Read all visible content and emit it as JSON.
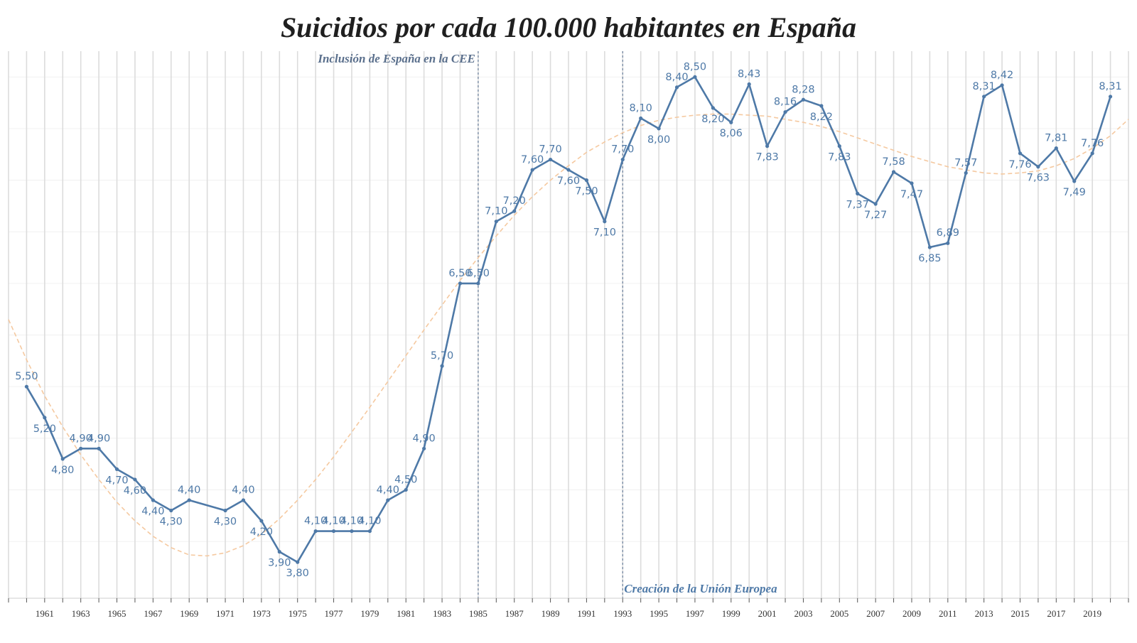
{
  "chart_data": {
    "type": "line",
    "title": "Suicidios por cada 100.000 habitantes en España",
    "xlabel": "",
    "ylabel": "",
    "x": [
      1960,
      1961,
      1962,
      1963,
      1964,
      1965,
      1966,
      1967,
      1968,
      1969,
      1971,
      1972,
      1973,
      1974,
      1975,
      1976,
      1977,
      1978,
      1979,
      1980,
      1981,
      1982,
      1983,
      1984,
      1985,
      1986,
      1987,
      1988,
      1989,
      1990,
      1991,
      1992,
      1993,
      1994,
      1995,
      1996,
      1997,
      1998,
      1999,
      2000,
      2001,
      2002,
      2003,
      2004,
      2005,
      2006,
      2007,
      2008,
      2009,
      2010,
      2011,
      2012,
      2013,
      2014,
      2015,
      2016,
      2017,
      2018,
      2019,
      2020
    ],
    "series": [
      {
        "name": "Suicidios por cada 100.000 habitantes",
        "color": "#4e79a7",
        "values": [
          5.5,
          5.2,
          4.8,
          4.9,
          4.9,
          4.7,
          4.6,
          4.4,
          4.3,
          4.4,
          4.3,
          4.4,
          4.2,
          3.9,
          3.8,
          4.1,
          4.1,
          4.1,
          4.1,
          4.4,
          4.5,
          4.9,
          5.7,
          6.5,
          6.5,
          7.1,
          7.2,
          7.6,
          7.7,
          7.6,
          7.5,
          7.1,
          7.7,
          8.1,
          8.0,
          8.4,
          8.5,
          8.2,
          8.06,
          8.43,
          7.83,
          8.16,
          8.28,
          8.22,
          7.83,
          7.37,
          7.27,
          7.58,
          7.47,
          6.85,
          6.89,
          7.57,
          8.31,
          8.42,
          7.76,
          7.63,
          7.81,
          7.49,
          7.76,
          8.31
        ],
        "labels": [
          "5,50",
          "5,20",
          "4,80",
          "4,90",
          "4,90",
          "4,70",
          "4,60",
          "4,40",
          "4,30",
          "4,40",
          "4,30",
          "4,40",
          "4,20",
          "3,90",
          "3,80",
          "4,10",
          "4,10",
          "4,10",
          "4,10",
          "4,40",
          "4,50",
          "4,90",
          "5,70",
          "6,50",
          "6,50",
          "7,10",
          "7,20",
          "7,60",
          "7,70",
          "7,60",
          "7,50",
          "7,10",
          "7,70",
          "8,10",
          "8,00",
          "8,40",
          "8,50",
          "8,20",
          "8,06",
          "8,43",
          "7,83",
          "8,16",
          "8,28",
          "8,22",
          "7,83",
          "7,37",
          "7,27",
          "7,58",
          "7,47",
          "6,85",
          "6,89",
          "7,57",
          "8,31",
          "8,42",
          "7,76",
          "7,63",
          "7,81",
          "7,49",
          "7,76",
          "8,31"
        ]
      },
      {
        "name": "Tendencia",
        "color": "#f5c9a0",
        "style": "dashed",
        "x": [
          1959,
          1960,
          1961,
          1962,
          1963,
          1964,
          1965,
          1966,
          1967,
          1968,
          1969,
          1970,
          1971,
          1972,
          1973,
          1974,
          1975,
          1976,
          1977,
          1978,
          1979,
          1980,
          1981,
          1982,
          1983,
          1984,
          1985,
          1986,
          1987,
          1988,
          1989,
          1990,
          1991,
          1992,
          1993,
          1994,
          1995,
          1996,
          1997,
          1998,
          1999,
          2000,
          2001,
          2002,
          2003,
          2004,
          2005,
          2006,
          2007,
          2008,
          2009,
          2010,
          2011,
          2012,
          2013,
          2014,
          2015,
          2016,
          2017,
          2018,
          2019,
          2020,
          2021
        ],
        "values": [
          6.15,
          5.76,
          5.41,
          5.11,
          4.84,
          4.6,
          4.38,
          4.2,
          4.05,
          3.94,
          3.87,
          3.86,
          3.89,
          3.96,
          4.07,
          4.22,
          4.4,
          4.6,
          4.82,
          5.06,
          5.3,
          5.55,
          5.8,
          6.05,
          6.29,
          6.53,
          6.75,
          6.96,
          7.16,
          7.34,
          7.5,
          7.64,
          7.77,
          7.87,
          7.96,
          8.03,
          8.08,
          8.11,
          8.13,
          8.14,
          8.14,
          8.13,
          8.12,
          8.09,
          8.06,
          8.02,
          7.97,
          7.91,
          7.85,
          7.79,
          7.73,
          7.68,
          7.63,
          7.6,
          7.57,
          7.56,
          7.57,
          7.59,
          7.64,
          7.71,
          7.81,
          7.93,
          8.09
        ]
      }
    ],
    "xticks": [
      "1961",
      "1963",
      "1965",
      "1967",
      "1969",
      "1971",
      "1973",
      "1975",
      "1977",
      "1979",
      "1981",
      "1983",
      "1985",
      "1987",
      "1989",
      "1991",
      "1993",
      "1995",
      "1997",
      "1999",
      "2001",
      "2003",
      "2005",
      "2007",
      "2009",
      "2011",
      "2013",
      "2015",
      "2017",
      "2019"
    ],
    "xlim": [
      1959,
      2021
    ],
    "ylim": [
      3.45,
      8.75
    ],
    "grid": true,
    "annotations": [
      {
        "x": 1985,
        "text": "Inclusión de España en la CEE",
        "position": "top-left"
      },
      {
        "x": 1993,
        "text": "Creación de la Unión Europea",
        "position": "bottom-right"
      }
    ]
  }
}
